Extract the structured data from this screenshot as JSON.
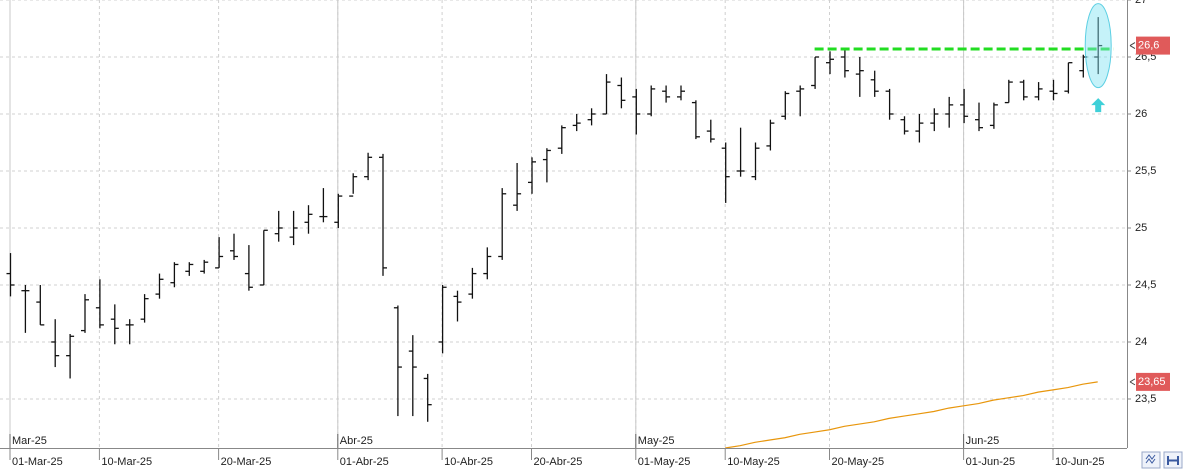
{
  "chart_data": {
    "type": "ohlc",
    "ylim": [
      23.07,
      27
    ],
    "yticks": [
      {
        "value": 23.5,
        "label": "23,5"
      },
      24,
      {
        "value": 24.5,
        "label": "24,5"
      },
      25,
      {
        "value": 25.5,
        "label": "25,5"
      },
      26,
      {
        "value": 26.5,
        "label": "26,5"
      },
      27
    ],
    "grid": true,
    "bar_color": "#111111",
    "categories": [
      "01-Mar-25",
      null,
      null,
      null,
      null,
      null,
      "10-Mar-25",
      null,
      null,
      null,
      null,
      null,
      null,
      null,
      "20-Mar-25",
      null,
      null,
      null,
      null,
      null,
      null,
      null,
      "01-Abr-25",
      null,
      null,
      null,
      null,
      null,
      null,
      "10-Abr-25",
      null,
      null,
      null,
      null,
      null,
      "20-Abr-25",
      null,
      null,
      null,
      null,
      null,
      null,
      "01-May-25",
      null,
      null,
      null,
      null,
      null,
      "10-May-25",
      null,
      null,
      null,
      null,
      null,
      null,
      "20-May-25",
      null,
      null,
      null,
      null,
      null,
      null,
      null,
      null,
      "01-Jun-25",
      null,
      null,
      null,
      null,
      null,
      "10-Jun-25",
      null,
      null,
      null
    ],
    "month_labels": [
      "Mar-25",
      null,
      null,
      null,
      null,
      null,
      null,
      null,
      null,
      null,
      null,
      null,
      null,
      null,
      null,
      null,
      null,
      null,
      null,
      null,
      null,
      null,
      "Abr-25",
      null,
      null,
      null,
      null,
      null,
      null,
      null,
      null,
      null,
      null,
      null,
      null,
      null,
      null,
      null,
      null,
      null,
      null,
      null,
      "May-25",
      null,
      null,
      null,
      null,
      null,
      null,
      null,
      null,
      null,
      null,
      null,
      null,
      null,
      null,
      null,
      null,
      null,
      null,
      null,
      null,
      null,
      "Jun-25",
      null,
      null,
      null,
      null,
      null,
      null,
      null,
      null,
      null
    ],
    "open": [
      24.6,
      24.45,
      24.35,
      24.0,
      23.88,
      24.1,
      24.3,
      24.2,
      24.15,
      24.2,
      24.42,
      24.52,
      24.62,
      24.62,
      24.65,
      24.8,
      24.6,
      24.5,
      24.95,
      24.92,
      25.05,
      25.1,
      25.05,
      25.28,
      25.45,
      25.62,
      24.3,
      23.92,
      23.68,
      24.0,
      24.4,
      24.42,
      24.6,
      24.75,
      25.2,
      25.4,
      25.6,
      25.7,
      25.9,
      25.95,
      26.0,
      26.25,
      26.15,
      26.0,
      26.2,
      26.15,
      26.1,
      25.85,
      25.7,
      25.5,
      25.45,
      25.72,
      25.98,
      26.2,
      26.25,
      26.45,
      26.5,
      26.35,
      26.3,
      26.2,
      25.95,
      25.85,
      25.92,
      26.0,
      26.08,
      25.95,
      25.9,
      26.1,
      26.28,
      26.15,
      26.2,
      26.2,
      26.38,
      26.5
    ],
    "high": [
      24.78,
      24.5,
      24.5,
      24.2,
      24.07,
      24.42,
      24.55,
      24.33,
      24.2,
      24.42,
      24.6,
      24.7,
      24.7,
      24.72,
      24.92,
      24.95,
      24.85,
      24.98,
      25.15,
      25.15,
      25.2,
      25.35,
      25.3,
      25.48,
      25.66,
      25.65,
      24.32,
      24.06,
      23.72,
      24.5,
      24.45,
      24.65,
      24.83,
      25.35,
      25.57,
      25.62,
      25.7,
      25.9,
      26.0,
      26.05,
      26.35,
      26.32,
      26.22,
      26.25,
      26.25,
      26.25,
      26.12,
      25.95,
      25.75,
      25.88,
      25.75,
      25.95,
      26.2,
      26.25,
      26.5,
      26.55,
      26.58,
      26.5,
      26.38,
      26.22,
      25.98,
      26.0,
      26.05,
      26.15,
      26.22,
      26.1,
      26.1,
      26.3,
      26.3,
      26.28,
      26.3,
      26.45,
      26.52,
      26.85
    ],
    "low": [
      24.4,
      24.08,
      24.15,
      23.78,
      23.68,
      24.08,
      24.12,
      23.98,
      23.98,
      24.17,
      24.38,
      24.48,
      24.58,
      24.6,
      24.65,
      24.72,
      24.45,
      24.5,
      24.88,
      24.85,
      24.95,
      25.05,
      25.0,
      25.3,
      25.42,
      24.58,
      23.35,
      23.35,
      23.3,
      23.9,
      24.18,
      24.38,
      24.55,
      24.72,
      25.15,
      25.3,
      25.4,
      25.65,
      25.85,
      25.9,
      26.0,
      26.05,
      25.82,
      25.98,
      26.1,
      26.12,
      25.78,
      25.75,
      25.22,
      25.45,
      25.42,
      25.68,
      25.95,
      25.98,
      26.22,
      26.35,
      26.32,
      26.15,
      26.15,
      25.95,
      25.82,
      25.75,
      25.85,
      25.88,
      25.92,
      25.85,
      25.87,
      26.1,
      26.12,
      26.12,
      26.12,
      26.18,
      26.32,
      26.35
    ],
    "close": [
      24.5,
      24.45,
      24.15,
      23.88,
      24.05,
      24.37,
      24.15,
      24.12,
      24.15,
      24.38,
      24.55,
      24.68,
      24.68,
      24.7,
      24.75,
      24.75,
      24.48,
      24.98,
      25.0,
      25.0,
      25.12,
      25.1,
      25.28,
      25.45,
      25.62,
      24.65,
      23.78,
      23.78,
      23.45,
      24.48,
      24.35,
      24.6,
      24.75,
      25.3,
      25.3,
      25.58,
      25.68,
      25.88,
      25.92,
      26.0,
      26.28,
      26.12,
      26.0,
      26.22,
      26.15,
      26.2,
      25.8,
      25.78,
      25.45,
      25.5,
      25.7,
      25.92,
      26.18,
      26.22,
      26.5,
      26.48,
      26.38,
      26.38,
      26.2,
      26.0,
      25.85,
      25.92,
      26.0,
      26.08,
      25.98,
      25.88,
      26.08,
      26.28,
      26.15,
      26.22,
      26.18,
      26.45,
      26.5,
      26.6
    ],
    "moving_average": {
      "color": "#e8960c",
      "values": [
        null,
        null,
        null,
        null,
        null,
        null,
        null,
        null,
        null,
        null,
        null,
        null,
        null,
        null,
        null,
        null,
        null,
        null,
        null,
        null,
        null,
        null,
        null,
        null,
        null,
        null,
        null,
        null,
        null,
        null,
        null,
        null,
        null,
        null,
        null,
        null,
        null,
        null,
        null,
        null,
        null,
        null,
        null,
        null,
        null,
        null,
        null,
        null,
        23.07,
        23.09,
        23.12,
        23.14,
        23.16,
        23.19,
        23.21,
        23.23,
        23.26,
        23.28,
        23.3,
        23.33,
        23.35,
        23.37,
        23.39,
        23.42,
        23.44,
        23.46,
        23.49,
        23.51,
        23.53,
        23.56,
        23.58,
        23.6,
        23.63,
        23.65
      ]
    },
    "resistance": {
      "value": 26.57,
      "color": "#22dd22"
    },
    "price_labels": [
      {
        "value": 26.6,
        "label": "26,6",
        "color": "#e05a5a"
      },
      {
        "value": 23.65,
        "label": "23,65",
        "color": "#e05a5a"
      }
    ]
  }
}
